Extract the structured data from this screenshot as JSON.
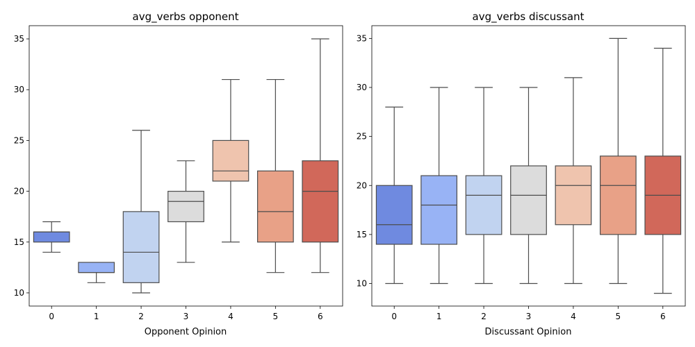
{
  "chart_data": [
    {
      "type": "box",
      "title": "avg_verbs opponent",
      "xlabel": "Opponent Opinion",
      "ylabel": "",
      "ylim": [
        8.7,
        36.3
      ],
      "yticks": [
        10,
        15,
        20,
        25,
        30,
        35
      ],
      "categories": [
        "0",
        "1",
        "2",
        "3",
        "4",
        "5",
        "6"
      ],
      "boxes": [
        {
          "min": 14,
          "q1": 15,
          "median": 16,
          "q3": 16,
          "max": 17
        },
        {
          "min": 11,
          "q1": 12,
          "median": 12,
          "q3": 13,
          "max": 13
        },
        {
          "min": 10,
          "q1": 11,
          "median": 14,
          "q3": 18,
          "max": 26
        },
        {
          "min": 13,
          "q1": 17,
          "median": 19,
          "q3": 20,
          "max": 23
        },
        {
          "min": 15,
          "q1": 21,
          "median": 22,
          "q3": 25,
          "max": 31
        },
        {
          "min": 12,
          "q1": 15,
          "median": 18,
          "q3": 22,
          "max": 31
        },
        {
          "min": 12,
          "q1": 15,
          "median": 20,
          "q3": 23,
          "max": 35
        }
      ]
    },
    {
      "type": "box",
      "title": "avg_verbs discussant",
      "xlabel": "Discussant Opinion",
      "ylabel": "",
      "ylim": [
        7.7,
        36.3
      ],
      "yticks": [
        10,
        15,
        20,
        25,
        30,
        35
      ],
      "categories": [
        "0",
        "1",
        "2",
        "3",
        "4",
        "5",
        "6"
      ],
      "boxes": [
        {
          "min": 10,
          "q1": 14,
          "median": 16,
          "q3": 20,
          "max": 28
        },
        {
          "min": 10,
          "q1": 14,
          "median": 18,
          "q3": 21,
          "max": 30
        },
        {
          "min": 10,
          "q1": 15,
          "median": 19,
          "q3": 21,
          "max": 30
        },
        {
          "min": 10,
          "q1": 15,
          "median": 19,
          "q3": 22,
          "max": 30
        },
        {
          "min": 10,
          "q1": 16,
          "median": 20,
          "q3": 22,
          "max": 31
        },
        {
          "min": 10,
          "q1": 15,
          "median": 20,
          "q3": 23,
          "max": 35
        },
        {
          "min": 9,
          "q1": 15,
          "median": 19,
          "q3": 23,
          "max": 34
        }
      ]
    }
  ],
  "palette": [
    "#6f8ae0",
    "#98b3f5",
    "#c1d3f0",
    "#dcdcdc",
    "#efc4ae",
    "#e8a187",
    "#d1685a"
  ]
}
